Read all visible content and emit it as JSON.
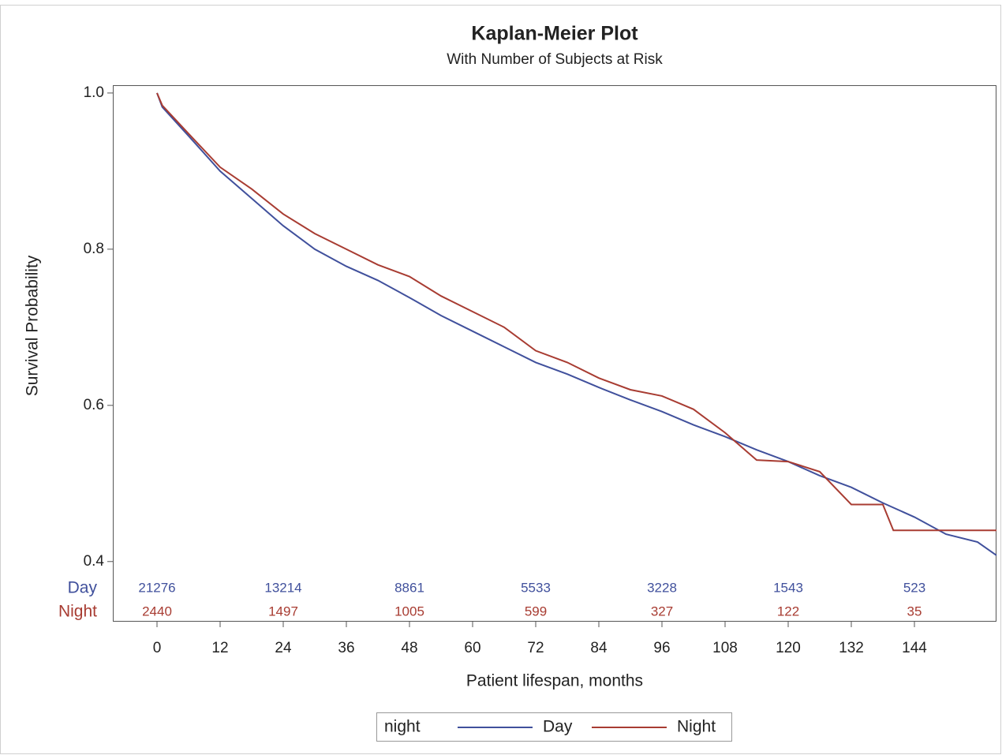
{
  "chart_data": {
    "type": "line",
    "title": "Kaplan-Meier Plot",
    "subtitle": "With Number of Subjects at Risk",
    "xlabel": "Patient lifespan, months",
    "ylabel": "Survival Probability",
    "legend_title": "night",
    "xlim": [
      -8.4,
      159.6
    ],
    "xticks": [
      0,
      12,
      24,
      36,
      48,
      60,
      72,
      84,
      96,
      108,
      120,
      132,
      144
    ],
    "ylim": [
      0.324,
      1.01
    ],
    "yticks": [
      0.4,
      0.6,
      0.8,
      {
        "value": 1.0,
        "label": "1.0"
      }
    ],
    "risk_times": [
      0,
      24,
      48,
      72,
      96,
      120,
      144
    ],
    "series": [
      {
        "name": "Day",
        "color": "#40509c",
        "x": [
          0,
          1,
          6,
          12,
          18,
          24,
          30,
          36,
          42,
          48,
          54,
          60,
          66,
          72,
          78,
          84,
          90,
          96,
          102,
          108,
          114,
          120,
          126,
          132,
          138,
          144,
          150,
          156,
          159.6
        ],
        "values": [
          1.0,
          0.982,
          0.945,
          0.9,
          0.865,
          0.83,
          0.8,
          0.778,
          0.76,
          0.738,
          0.715,
          0.695,
          0.675,
          0.655,
          0.64,
          0.623,
          0.607,
          0.592,
          0.575,
          0.56,
          0.543,
          0.528,
          0.51,
          0.495,
          0.475,
          0.457,
          0.435,
          0.425,
          0.408
        ],
        "at_risk": [
          21276,
          13214,
          8861,
          5533,
          3228,
          1543,
          523
        ]
      },
      {
        "name": "Night",
        "color": "#a83c32",
        "x": [
          0,
          1,
          6,
          12,
          18,
          24,
          30,
          36,
          42,
          48,
          54,
          60,
          66,
          72,
          78,
          84,
          90,
          96,
          102,
          108,
          114,
          120,
          126,
          132,
          138,
          140,
          159.6
        ],
        "values": [
          1.0,
          0.984,
          0.948,
          0.905,
          0.877,
          0.845,
          0.82,
          0.8,
          0.78,
          0.765,
          0.74,
          0.72,
          0.7,
          0.67,
          0.655,
          0.635,
          0.62,
          0.612,
          0.595,
          0.565,
          0.53,
          0.528,
          0.515,
          0.473,
          0.473,
          0.44,
          0.44
        ],
        "at_risk": [
          2440,
          1497,
          1005,
          599,
          327,
          122,
          35
        ]
      }
    ]
  }
}
